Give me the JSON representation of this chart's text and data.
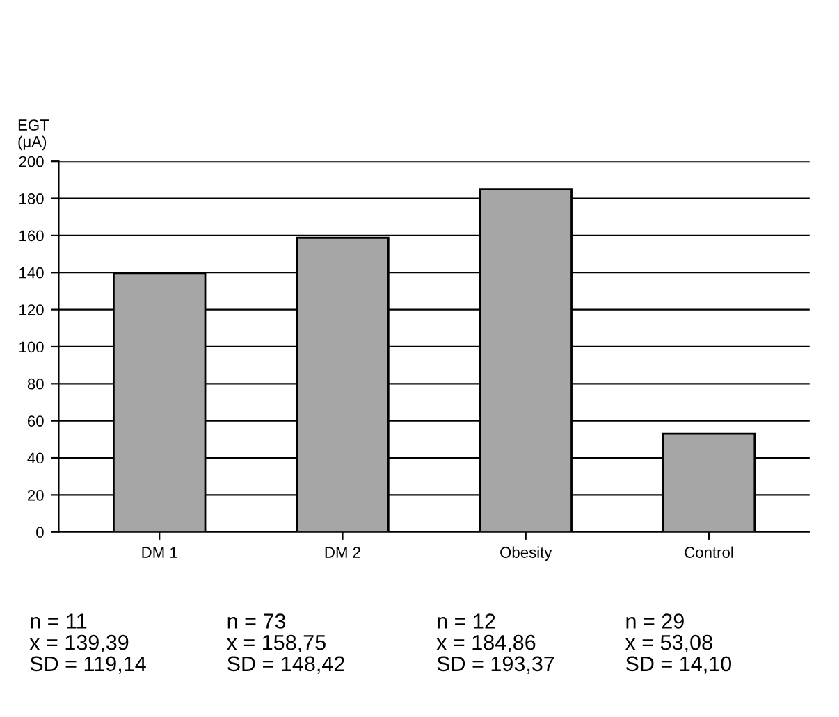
{
  "chart_data": {
    "type": "bar",
    "ylabel": "EGT\n(μA)",
    "categories": [
      "DM 1",
      "DM 2",
      "Obesity",
      "Control"
    ],
    "values": [
      139.39,
      158.75,
      184.86,
      53.08
    ],
    "color": "#a6a6a6",
    "ylim": [
      0,
      200
    ],
    "yticks": [
      0,
      20,
      40,
      60,
      80,
      100,
      120,
      140,
      160,
      180,
      200
    ],
    "grid": "y",
    "annotations": [
      "n = 11\nx = 139,39\nSD = 119,14",
      "n = 73\nx = 158,75\nSD = 148,42",
      "n = 12\nx = 184,86\nSD = 193,37",
      "n = 29\nx = 53,08\nSD = 14,10"
    ]
  }
}
